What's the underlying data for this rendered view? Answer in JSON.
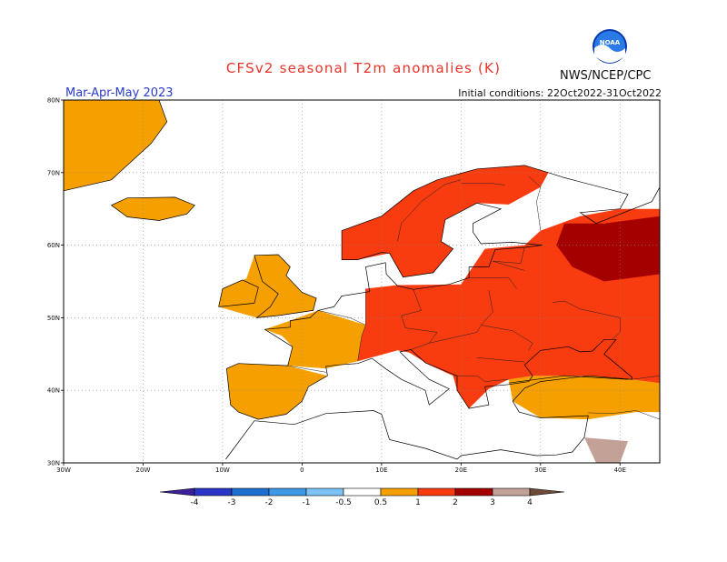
{
  "title": "CFSv2 seasonal T2m anomalies (K)",
  "period": "Mar-Apr-May 2023",
  "initial_conditions": "Initial conditions: 22Oct2022-31Oct2022",
  "agency": "NWS/NCEP/CPC",
  "logo_text": "NOAA",
  "colors": {
    "title": "#e8332a",
    "period": "#2b3cc8",
    "anom_05_1": "#f5a000",
    "anom_1_2": "#f93b10",
    "anom_2_3": "#a50000",
    "anom_3_4": "#c4a197",
    "coast": "#000000"
  },
  "chart_data": {
    "type": "map",
    "region": "Europe",
    "projection": "equirectangular",
    "lon_range": [
      -30,
      45
    ],
    "lat_range": [
      30,
      80
    ],
    "lon_ticks": [
      "30W",
      "20W",
      "10W",
      "0",
      "10E",
      "20E",
      "30E",
      "40E"
    ],
    "lat_ticks": [
      "30N",
      "40N",
      "50N",
      "60N",
      "70N",
      "80N"
    ],
    "grid": true,
    "colorbar": {
      "labels": [
        "-4",
        "-3",
        "-2",
        "-1",
        "-0.5",
        "0.5",
        "1",
        "2",
        "3",
        "4"
      ],
      "bins": [
        {
          "range": [
            -5,
            -4
          ],
          "color": "#3c1f9a"
        },
        {
          "range": [
            -4,
            -3
          ],
          "color": "#2b35c8"
        },
        {
          "range": [
            -3,
            -2
          ],
          "color": "#1e6fd0"
        },
        {
          "range": [
            -2,
            -1
          ],
          "color": "#3e98e6"
        },
        {
          "range": [
            -1,
            -0.5
          ],
          "color": "#7cc2f5"
        },
        {
          "range": [
            -0.5,
            0.5
          ],
          "color": "#ffffff"
        },
        {
          "range": [
            0.5,
            1
          ],
          "color": "#f5a000"
        },
        {
          "range": [
            1,
            2
          ],
          "color": "#f93b10"
        },
        {
          "range": [
            2,
            3
          ],
          "color": "#a50000"
        },
        {
          "range": [
            3,
            4
          ],
          "color": "#c4a197"
        },
        {
          "range": [
            4,
            5
          ],
          "color": "#6e4a3a"
        }
      ]
    },
    "anomaly_regions": [
      {
        "name": "Greenland",
        "bin": "0.5-1"
      },
      {
        "name": "Iceland",
        "bin": "0.5-1"
      },
      {
        "name": "British Isles",
        "bin": "0.5-1"
      },
      {
        "name": "Iberia",
        "bin": "0.5-1"
      },
      {
        "name": "France",
        "bin": "0.5-1"
      },
      {
        "name": "Turkey",
        "bin": "0.5-1"
      },
      {
        "name": "Scandinavia",
        "bin": "1-2"
      },
      {
        "name": "Central and Eastern Europe",
        "bin": "1-2"
      },
      {
        "name": "Western Russia",
        "bin": "2-3"
      },
      {
        "name": "Middle East",
        "bin": "3-4"
      }
    ]
  }
}
